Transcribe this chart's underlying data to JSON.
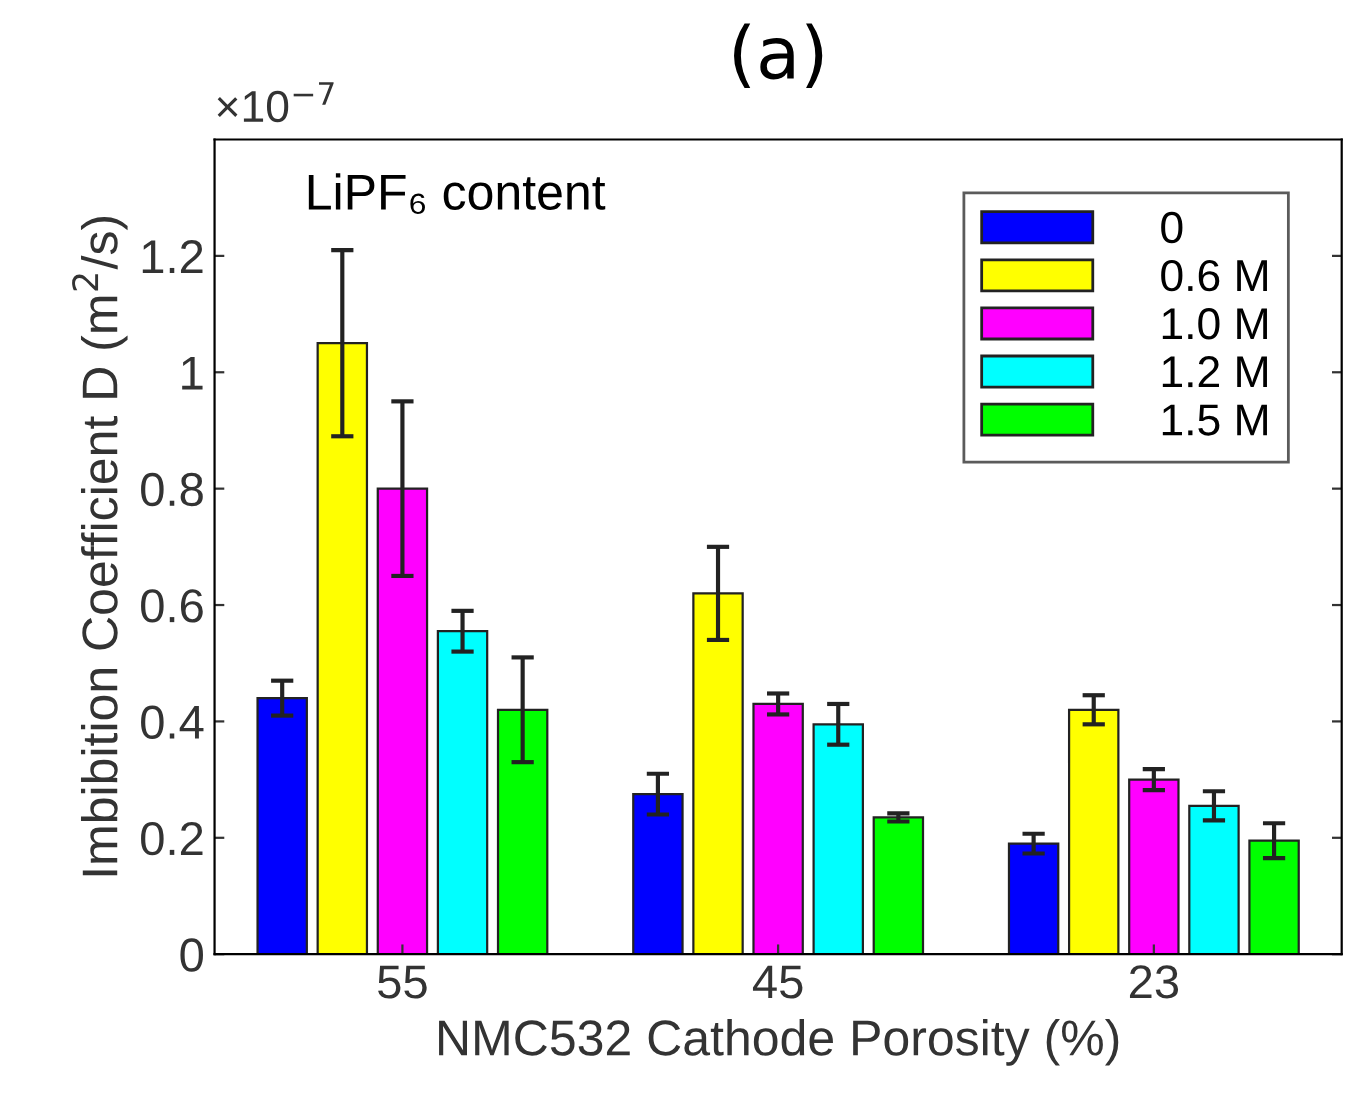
{
  "chart_data": {
    "type": "bar",
    "title": "(a)",
    "xlabel": "NMC532 Cathode Porosity (%)",
    "ylabel": "Imbibition Coefficient D (m$^{2}$/s)",
    "legend_title": "LiPF₆ content",
    "annotations": [
      "×10$^{−7}$"
    ],
    "categories": [
      "55",
      "45",
      "23"
    ],
    "series": [
      {
        "name": "0",
        "color": "#0000ff",
        "values": [
          0.44,
          0.275,
          0.19
        ],
        "errors": [
          0.03,
          0.035,
          0.017
        ]
      },
      {
        "name": "0.6 M",
        "color": "#ffff00",
        "values": [
          1.05,
          0.62,
          0.42
        ],
        "errors": [
          0.16,
          0.08,
          0.025
        ]
      },
      {
        "name": "1.0 M",
        "color": "#ff00ff",
        "values": [
          0.8,
          0.43,
          0.3
        ],
        "errors": [
          0.15,
          0.018,
          0.018
        ]
      },
      {
        "name": "1.2 M",
        "color": "#00ffff",
        "values": [
          0.555,
          0.395,
          0.255
        ],
        "errors": [
          0.035,
          0.035,
          0.025
        ]
      },
      {
        "name": "1.5 M",
        "color": "#00ff00",
        "values": [
          0.42,
          0.235,
          0.195
        ],
        "errors": [
          0.09,
          0.007,
          0.03
        ]
      }
    ],
    "ylim": [
      0,
      1.4
    ],
    "yticks": [
      0,
      0.2,
      0.4,
      0.6,
      0.8,
      {
        "value": 1,
        "label": "1"
      },
      1.2
    ],
    "legend": "top right",
    "grid": false
  }
}
